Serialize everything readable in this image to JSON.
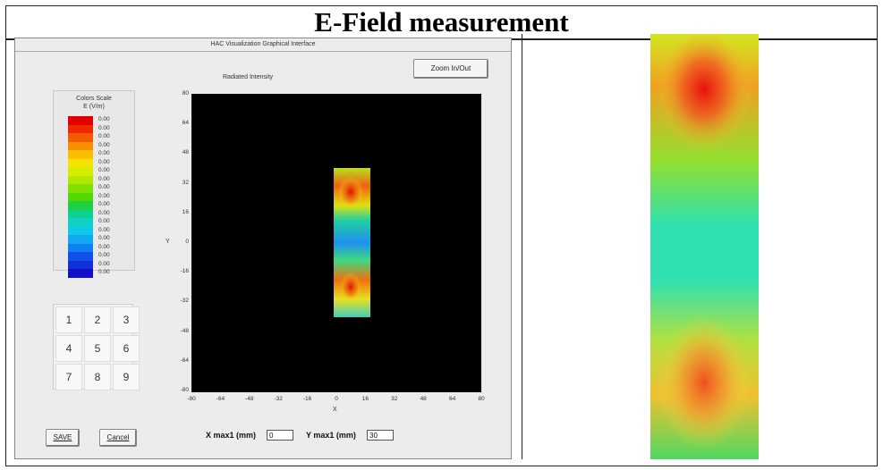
{
  "page": {
    "title": "E-Field measurement"
  },
  "app": {
    "window_title": "HAC Visualization Graphical Interface",
    "zoom_button": "Zoom In/Out",
    "plot_title": "Radiated Intensity",
    "color_scale": {
      "title_line1": "Colors Scale",
      "title_line2": "E (V/m)",
      "colors": [
        "#e00000",
        "#f02800",
        "#f45a00",
        "#f88e00",
        "#fcbe00",
        "#f4e400",
        "#d6ec00",
        "#b0e800",
        "#80e000",
        "#50d800",
        "#20d040",
        "#10d090",
        "#10d0c8",
        "#10c8e8",
        "#10a8f0",
        "#1080f0",
        "#1050e8",
        "#1030d8",
        "#1010c8"
      ],
      "labels": [
        "0.00",
        "0.00",
        "0.00",
        "0.00",
        "0.00",
        "0.00",
        "0.00",
        "0.00",
        "0.00",
        "0.00",
        "0.00",
        "0.00",
        "0.00",
        "0.00",
        "0.00",
        "0.00",
        "0.00",
        "0.00",
        "0.00"
      ]
    },
    "keypad": [
      "1",
      "2",
      "3",
      "4",
      "5",
      "6",
      "7",
      "8",
      "9"
    ],
    "y_ticks": [
      "80",
      "64",
      "48",
      "32",
      "16",
      "0",
      "-16",
      "-32",
      "-48",
      "-64",
      "-80"
    ],
    "x_ticks": [
      "-80",
      "-64",
      "-48",
      "-32",
      "-16",
      "0",
      "16",
      "32",
      "48",
      "64",
      "80"
    ],
    "x_axis_label": "X",
    "y_axis_label": "Y",
    "save_button": "SAVE",
    "cancel_button": "Cancel",
    "xmax_label": "X max1 (mm)",
    "xmax_value": "0",
    "ymax_label": "Y max1 (mm)",
    "ymax_value": "30"
  }
}
